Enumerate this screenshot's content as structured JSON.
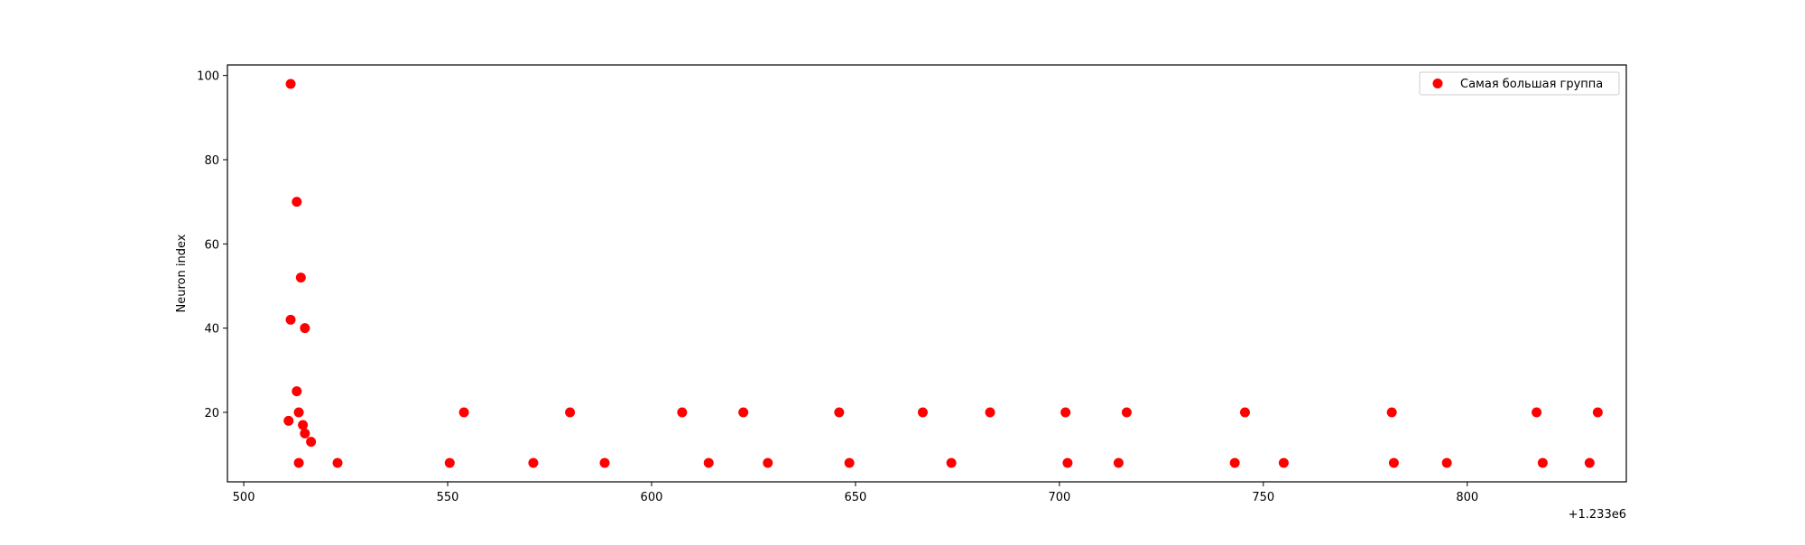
{
  "chart_data": {
    "type": "scatter",
    "title": "",
    "xlabel": "",
    "ylabel": "Neuron index",
    "x_offset_text": "+1.233e6",
    "xlim": [
      496,
      839
    ],
    "ylim": [
      3.5,
      102.5
    ],
    "x_ticks": [
      500,
      550,
      600,
      650,
      700,
      750,
      800
    ],
    "y_ticks": [
      20,
      40,
      60,
      80,
      100
    ],
    "grid": false,
    "legend": {
      "position": "top-right",
      "entries": [
        "Самая большая группа"
      ]
    },
    "series": [
      {
        "name": "Самая большая группа",
        "color": "#ff0000",
        "points": [
          [
            511.5,
            98
          ],
          [
            513.0,
            70
          ],
          [
            514.0,
            52
          ],
          [
            511.5,
            42
          ],
          [
            515.0,
            40
          ],
          [
            513.0,
            25
          ],
          [
            513.5,
            20
          ],
          [
            511.0,
            18
          ],
          [
            514.5,
            17
          ],
          [
            515.0,
            15
          ],
          [
            516.5,
            13
          ],
          [
            513.5,
            8
          ],
          [
            523.0,
            8
          ],
          [
            550.5,
            8
          ],
          [
            554.0,
            20
          ],
          [
            571.0,
            8
          ],
          [
            580.0,
            20
          ],
          [
            588.5,
            8
          ],
          [
            607.5,
            20
          ],
          [
            614.0,
            8
          ],
          [
            622.5,
            20
          ],
          [
            628.5,
            8
          ],
          [
            646.0,
            20
          ],
          [
            648.5,
            8
          ],
          [
            666.5,
            20
          ],
          [
            673.5,
            8
          ],
          [
            683.0,
            20
          ],
          [
            701.5,
            20
          ],
          [
            702.0,
            8
          ],
          [
            714.5,
            8
          ],
          [
            716.5,
            20
          ],
          [
            743.0,
            8
          ],
          [
            745.5,
            20
          ],
          [
            755.0,
            8
          ],
          [
            781.5,
            20
          ],
          [
            782.0,
            8
          ],
          [
            795.0,
            8
          ],
          [
            817.0,
            20
          ],
          [
            818.5,
            8
          ],
          [
            830.0,
            8
          ],
          [
            832.0,
            20
          ]
        ]
      }
    ]
  }
}
